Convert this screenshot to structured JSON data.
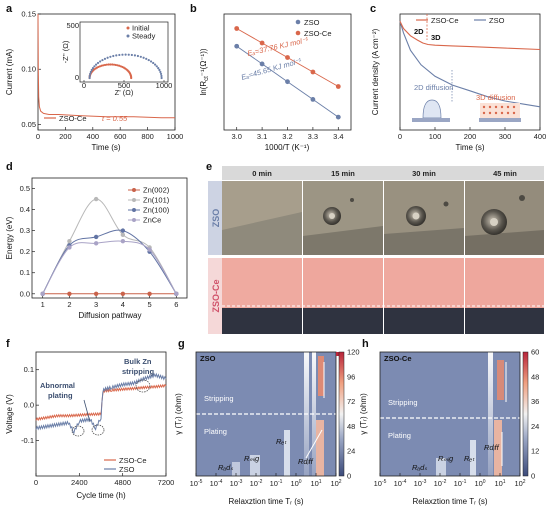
{
  "colors": {
    "zso": "#6b7fa8",
    "zsoce": "#d9674b",
    "grey": "#9a9a9a",
    "zn002": "#c9624a",
    "zn101": "#b8b8b8",
    "zn100": "#6274a4",
    "znce": "#a9a3c6"
  },
  "panels": {
    "a": {
      "label": "a",
      "xlabel": "Time (s)",
      "ylabel": "Current (mA)",
      "legend": "ZSO-Ce",
      "t_text": "t = 0.55",
      "inset_legend": [
        "Initial",
        "Steady"
      ],
      "inset_xlabel": "Z' (Ω)",
      "inset_ylabel": "-Z'' (Ω)"
    },
    "b": {
      "label": "b",
      "xlabel": "1000/T (K⁻¹)",
      "ylabel": "ln(Rₑₜ⁻¹(Ω⁻¹))",
      "ylabel_main": "ln(R",
      "ylabel_sub": "ct",
      "ylabel_rest": "⁻¹(Ω⁻¹))",
      "legend": [
        "ZSO",
        "ZSO-Ce"
      ],
      "ea_zsoce": "Eₐ=37.76 KJ mol⁻¹",
      "ea_zso": "Eₐ=45.65 KJ mol⁻¹"
    },
    "c": {
      "label": "c",
      "xlabel": "Time (s)",
      "ylabel": "Current density (A cm⁻²)",
      "legend": [
        "ZSO-Ce",
        "ZSO"
      ],
      "tag_2d": "2D",
      "tag_3d": "3D",
      "txt_2d": "2D diffusion",
      "txt_3d": "3D diffusion"
    },
    "d": {
      "label": "d",
      "xlabel": "Diffusion pathway",
      "ylabel": "Energy (eV)",
      "legend": [
        "Zn(002)",
        "Zn(101)",
        "Zn(100)",
        "ZnCe"
      ]
    },
    "e": {
      "label": "e",
      "times": [
        "0 min",
        "15 min",
        "30 min",
        "45 min"
      ],
      "row_zso": "ZSO",
      "row_zsoce": "ZSO-Ce"
    },
    "f": {
      "label": "f",
      "xlabel": "Cycle time (h)",
      "ylabel": "Voltage (V)",
      "legend": [
        "ZSO-Ce",
        "ZSO"
      ],
      "ann_abnormal": [
        "Abnormal",
        "plating"
      ],
      "ann_bulk": [
        "Bulk Zn",
        "stripping"
      ]
    },
    "g": {
      "label": "g",
      "title": "ZSO",
      "xlabel": "Relaxztion time Tᵣ (s)",
      "ylabel": "γ (Tᵣ) (ohm)",
      "stripping": "Stripping",
      "plating": "Plating",
      "labels": [
        "Rₐdₛ",
        "Rₘᵢg",
        "Rₑₜ",
        "Rdᵢff"
      ],
      "cbar_ticks": [
        "120",
        "96",
        "72",
        "48",
        "24",
        "0"
      ]
    },
    "h": {
      "label": "h",
      "title": "ZSO-Ce",
      "xlabel": "Relaxztion time Tᵣ (s)",
      "ylabel": "γ (Tᵣ) (ohm)",
      "stripping": "Stripping",
      "plating": "Plating",
      "labels": [
        "Rₐdₛ",
        "Rₘᵢg",
        "Rₑₜ",
        "Rdᵢff"
      ],
      "cbar_ticks": [
        "60",
        "48",
        "36",
        "24",
        "12",
        "0"
      ]
    }
  },
  "chart_data": [
    {
      "panel": "a",
      "type": "line",
      "xlabel": "Time (s)",
      "ylabel": "Current (mA)",
      "xlim": [
        0,
        1000
      ],
      "ylim": [
        0.045,
        0.15
      ],
      "xticks": [
        0,
        200,
        400,
        600,
        800,
        1000
      ],
      "yticks": [
        0.05,
        0.1,
        0.15
      ],
      "series": [
        {
          "name": "ZSO-Ce",
          "x": [
            0,
            2,
            5,
            10,
            20,
            40,
            80,
            150,
            300,
            500,
            700,
            900,
            1000
          ],
          "y": [
            0.15,
            0.1,
            0.075,
            0.066,
            0.062,
            0.06,
            0.059,
            0.059,
            0.058,
            0.057,
            0.057,
            0.056,
            0.056
          ]
        }
      ],
      "inset": {
        "xlabel": "Z' (Ω)",
        "ylabel": "-Z'' (Ω)",
        "xlim": [
          0,
          1000
        ],
        "ylim": [
          0,
          500
        ],
        "xticks": [
          0,
          500,
          1000
        ],
        "yticks": [
          0,
          500
        ],
        "series": [
          {
            "name": "Initial",
            "center": 330,
            "radius": 260
          },
          {
            "name": "Steady",
            "center": 520,
            "radius": 450
          }
        ]
      }
    },
    {
      "panel": "b",
      "type": "scatter",
      "xlabel": "1000/T (K⁻¹)",
      "ylabel": "ln(Rct⁻¹(Ω⁻¹))",
      "xlim": [
        2.95,
        3.45
      ],
      "xticks": [
        3.0,
        3.1,
        3.2,
        3.3,
        3.4
      ],
      "series": [
        {
          "name": "ZSO",
          "x": [
            3.0,
            3.1,
            3.2,
            3.3,
            3.4
          ],
          "y": [
            -5.4,
            -5.95,
            -6.5,
            -7.05,
            -7.6
          ]
        },
        {
          "name": "ZSO-Ce",
          "x": [
            3.0,
            3.1,
            3.2,
            3.3,
            3.4
          ],
          "y": [
            -4.85,
            -5.3,
            -5.75,
            -6.2,
            -6.65
          ]
        }
      ],
      "ylim": [
        -8.0,
        -4.4
      ]
    },
    {
      "panel": "c",
      "type": "line",
      "xlabel": "Time (s)",
      "ylabel": "Current density (A cm⁻²)",
      "xlim": [
        0,
        400
      ],
      "xticks": [
        0,
        100,
        200,
        300,
        400
      ],
      "ylim": [
        -0.75,
        0.05
      ],
      "series": [
        {
          "name": "ZSO-Ce",
          "x": [
            0,
            10,
            30,
            50,
            65,
            80,
            100,
            150,
            200,
            300,
            400
          ],
          "y": [
            0,
            -0.05,
            -0.1,
            -0.13,
            -0.15,
            -0.16,
            -0.165,
            -0.17,
            -0.175,
            -0.185,
            -0.195
          ]
        },
        {
          "name": "ZSO",
          "x": [
            0,
            10,
            30,
            60,
            100,
            150,
            200,
            250,
            300,
            350,
            400
          ],
          "y": [
            0,
            -0.08,
            -0.2,
            -0.3,
            -0.38,
            -0.44,
            -0.48,
            -0.52,
            -0.55,
            -0.57,
            -0.59
          ]
        }
      ]
    },
    {
      "panel": "d",
      "type": "line",
      "xlabel": "Diffusion pathway",
      "ylabel": "Energy (eV)",
      "xlim": [
        0.6,
        6.4
      ],
      "xticks": [
        1,
        2,
        3,
        4,
        5,
        6
      ],
      "ylim": [
        -0.02,
        0.55
      ],
      "yticks": [
        0.0,
        0.1,
        0.2,
        0.3,
        0.4,
        0.5
      ],
      "series": [
        {
          "name": "Zn(002)",
          "x": [
            1,
            2,
            3,
            4,
            5,
            6
          ],
          "y": [
            0,
            0,
            0,
            0,
            0,
            0
          ]
        },
        {
          "name": "Zn(101)",
          "x": [
            1,
            2,
            3,
            4,
            5,
            6
          ],
          "y": [
            0,
            0.25,
            0.45,
            0.28,
            0.22,
            0
          ]
        },
        {
          "name": "Zn(100)",
          "x": [
            1,
            2,
            3,
            4,
            5,
            6
          ],
          "y": [
            0,
            0.23,
            0.27,
            0.3,
            0.2,
            0
          ]
        },
        {
          "name": "ZnCe",
          "x": [
            1,
            2,
            3,
            4,
            5,
            6
          ],
          "y": [
            0,
            0.22,
            0.24,
            0.25,
            0.21,
            0
          ]
        }
      ]
    },
    {
      "panel": "f",
      "type": "line",
      "xlabel": "Cycle time (h)",
      "ylabel": "Voltage (V)",
      "xlim": [
        0,
        7200
      ],
      "xticks": [
        0,
        2400,
        4800,
        7200
      ],
      "ylim": [
        -0.2,
        0.15
      ],
      "yticks": [
        -0.1,
        0.0,
        0.1
      ],
      "series": [
        {
          "name": "ZSO-Ce",
          "x": [
            0,
            600,
            1200,
            1800,
            2400,
            3000,
            3600,
            3700,
            3800,
            4200,
            4800,
            5400,
            6000,
            6600,
            7200
          ],
          "y": [
            -0.04,
            -0.035,
            -0.03,
            -0.03,
            -0.028,
            -0.026,
            -0.025,
            0.035,
            0.04,
            0.042,
            0.045,
            0.047,
            0.05,
            0.052,
            0.055
          ]
        },
        {
          "name": "ZSO",
          "x": [
            0,
            600,
            1200,
            1800,
            2100,
            2400,
            3000,
            3300,
            3600,
            3700,
            3800,
            4200,
            4800,
            5400,
            6000,
            6600,
            7200
          ],
          "y": [
            -0.065,
            -0.06,
            -0.055,
            -0.05,
            -0.075,
            -0.045,
            -0.04,
            -0.065,
            -0.035,
            0.04,
            0.045,
            0.05,
            0.058,
            0.062,
            0.075,
            0.085,
            0.075
          ]
        }
      ]
    },
    {
      "panel": "g",
      "type": "heatmap",
      "title": "ZSO",
      "xlabel": "Relaxztion time Tr (s)",
      "ylabel": "γ (Tr) (ohm)",
      "colorbar": [
        0,
        24,
        48,
        72,
        96,
        120
      ]
    },
    {
      "panel": "h",
      "type": "heatmap",
      "title": "ZSO-Ce",
      "xlabel": "Relaxztion time Tr (s)",
      "ylabel": "γ (Tr) (ohm)",
      "colorbar": [
        0,
        12,
        24,
        36,
        48,
        60
      ]
    }
  ]
}
